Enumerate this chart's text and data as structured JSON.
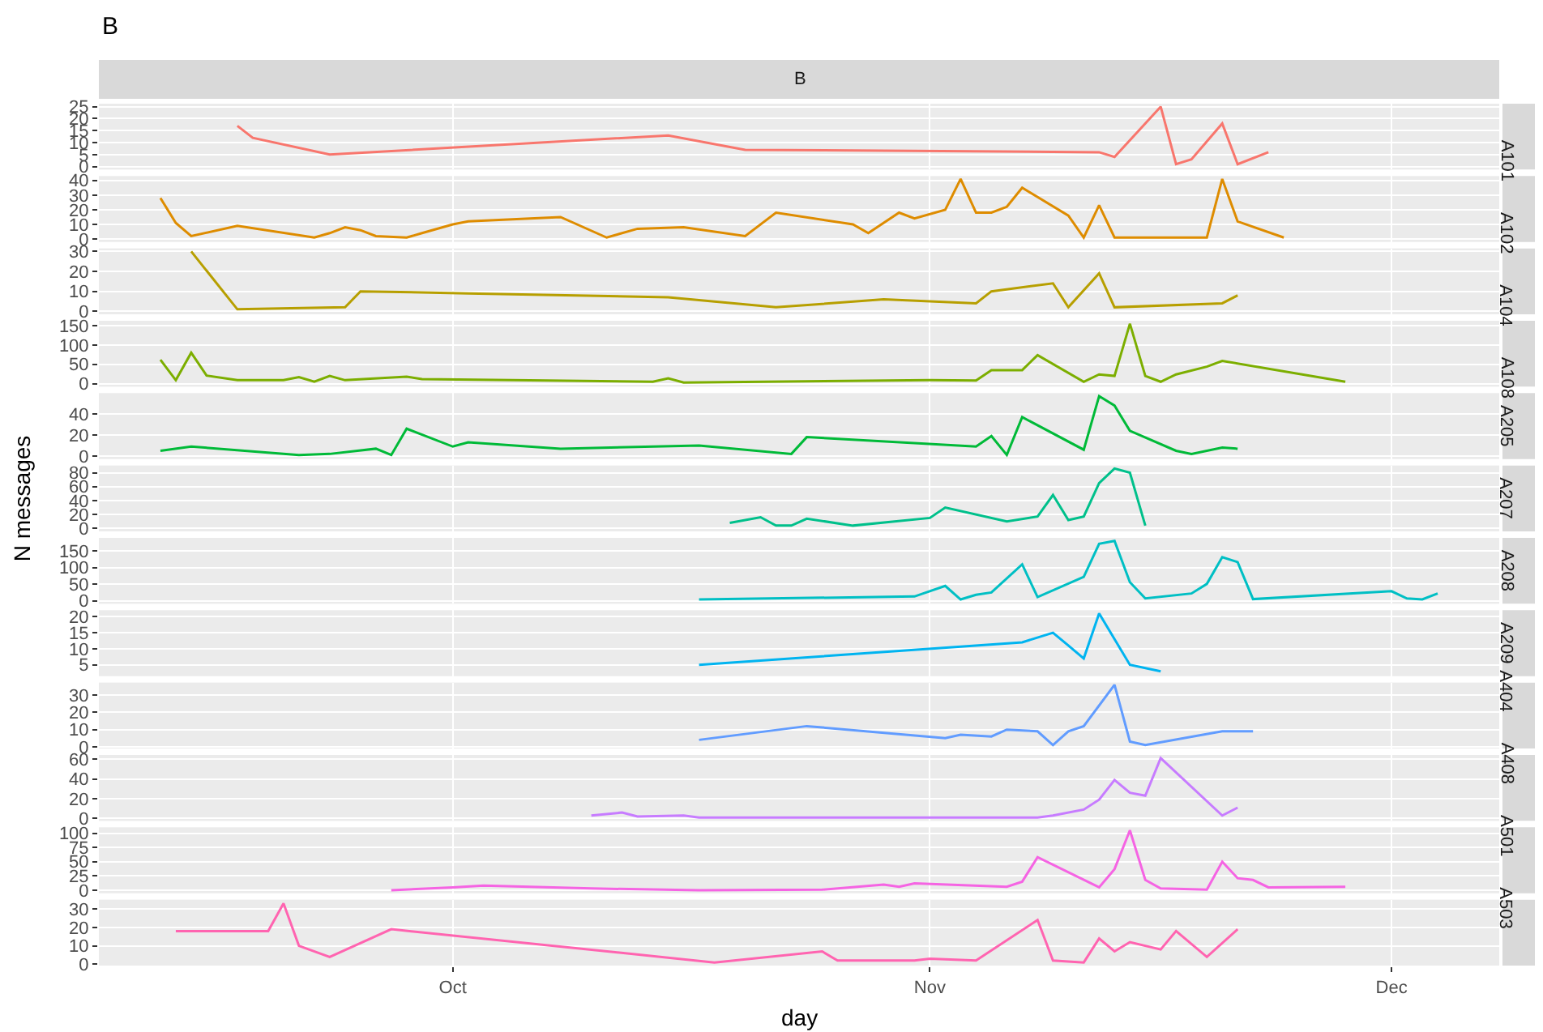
{
  "chart_data": [
    {
      "type": "line",
      "title": "A101",
      "annotations": [
        "B",
        "B"
      ],
      "grid": true,
      "tick_labels": "y",
      "xlim": [
        "--09-08",
        "--12-08"
      ],
      "xticks": [
        {
          "value": "--10-01",
          "label": "Oct"
        },
        {
          "value": "--11-01",
          "label": "Nov"
        },
        {
          "value": "--12-01",
          "label": "Dec"
        }
      ],
      "ylim": [
        -1.25,
        26.25
      ],
      "yticks": [
        0,
        5,
        10,
        15,
        20,
        25
      ],
      "series": [
        {
          "color": "#f8766d",
          "x": [
            "--09-17",
            "--09-18",
            "--09-23",
            "--10-15",
            "--10-20",
            "--11-12",
            "--11-13",
            "--11-16",
            "--11-17",
            "--11-18",
            "--11-20",
            "--11-21",
            "--11-23"
          ],
          "values": [
            17,
            12,
            5,
            13,
            7,
            6,
            4,
            25,
            1,
            3,
            18,
            1,
            6
          ]
        }
      ]
    },
    {
      "type": "line",
      "title": "A102",
      "grid": true,
      "tick_labels": "y",
      "xlim": [
        "--09-08",
        "--12-08"
      ],
      "xticks": [
        {
          "value": "--10-01",
          "label": "Oct"
        },
        {
          "value": "--11-01",
          "label": "Nov"
        },
        {
          "value": "--12-01",
          "label": "Dec"
        }
      ],
      "ylim": [
        -2,
        43
      ],
      "yticks": [
        0,
        10,
        20,
        30,
        40
      ],
      "series": [
        {
          "color": "#de8c00",
          "x": [
            "--09-12",
            "--09-13",
            "--09-14",
            "--09-17",
            "--09-22",
            "--09-23",
            "--09-24",
            "--09-25",
            "--09-26",
            "--09-28",
            "--09-29",
            "--10-01",
            "--10-02",
            "--10-08",
            "--10-11",
            "--10-13",
            "--10-16",
            "--10-20",
            "--10-22",
            "--10-27",
            "--10-28",
            "--10-30",
            "--10-31",
            "--11-02",
            "--11-03",
            "--11-04",
            "--11-05",
            "--11-06",
            "--11-07",
            "--11-10",
            "--11-11",
            "--11-12",
            "--11-13",
            "--11-19",
            "--11-20",
            "--11-21",
            "--11-24"
          ],
          "values": [
            28,
            11,
            2,
            9,
            1,
            4,
            8,
            6,
            2,
            1,
            4,
            10,
            12,
            15,
            1,
            7,
            8,
            2,
            18,
            10,
            4,
            18,
            14,
            20,
            41,
            18,
            18,
            22,
            35,
            16,
            1,
            23,
            1,
            1,
            41,
            12,
            1
          ]
        }
      ]
    },
    {
      "type": "line",
      "title": "A104",
      "grid": true,
      "tick_labels": "y",
      "xlim": [
        "--09-08",
        "--12-08"
      ],
      "xticks": [
        {
          "value": "--10-01",
          "label": "Oct"
        },
        {
          "value": "--11-01",
          "label": "Nov"
        },
        {
          "value": "--12-01",
          "label": "Dec"
        }
      ],
      "ylim": [
        -1.5,
        31.5
      ],
      "yticks": [
        0,
        10,
        20,
        30
      ],
      "series": [
        {
          "color": "#b79f00",
          "x": [
            "--09-14",
            "--09-17",
            "--09-24",
            "--09-25",
            "--10-02",
            "--10-15",
            "--10-22",
            "--10-29",
            "--11-04",
            "--11-05",
            "--11-09",
            "--11-10",
            "--11-12",
            "--11-13",
            "--11-20",
            "--11-21"
          ],
          "values": [
            30,
            1,
            2,
            10,
            9,
            7,
            2,
            6,
            4,
            10,
            14,
            2,
            19,
            2,
            4,
            8
          ]
        }
      ]
    },
    {
      "type": "line",
      "title": "A108",
      "grid": true,
      "tick_labels": "y",
      "xlim": [
        "--09-08",
        "--12-08"
      ],
      "xticks": [
        {
          "value": "--10-01",
          "label": "Oct"
        },
        {
          "value": "--11-01",
          "label": "Nov"
        },
        {
          "value": "--12-01",
          "label": "Dec"
        }
      ],
      "ylim": [
        -7.75,
        162.75
      ],
      "yticks": [
        0,
        50,
        100,
        150
      ],
      "series": [
        {
          "color": "#7cae00",
          "x": [
            "--09-12",
            "--09-13",
            "--09-14",
            "--09-15",
            "--09-17",
            "--09-20",
            "--09-21",
            "--09-22",
            "--09-23",
            "--09-24",
            "--09-28",
            "--09-29",
            "--10-14",
            "--10-15",
            "--10-16",
            "--11-01",
            "--11-04",
            "--11-05",
            "--11-07",
            "--11-08",
            "--11-11",
            "--11-12",
            "--11-13",
            "--11-14",
            "--11-15",
            "--11-16",
            "--11-17",
            "--11-19",
            "--11-20",
            "--11-28"
          ],
          "values": [
            62,
            9,
            80,
            21,
            9,
            9,
            17,
            5,
            20,
            9,
            18,
            12,
            5,
            14,
            3,
            9,
            8,
            35,
            35,
            74,
            5,
            24,
            20,
            155,
            20,
            5,
            24,
            44,
            59,
            5
          ]
        }
      ]
    },
    {
      "type": "line",
      "title": "A205",
      "grid": true,
      "tick_labels": "y",
      "xlim": [
        "--09-08",
        "--12-08"
      ],
      "xticks": [
        {
          "value": "--10-01",
          "label": "Oct"
        },
        {
          "value": "--11-01",
          "label": "Nov"
        },
        {
          "value": "--12-01",
          "label": "Dec"
        }
      ],
      "ylim": [
        -2.85,
        59.85
      ],
      "yticks": [
        0,
        20,
        40
      ],
      "series": [
        {
          "color": "#00ba38",
          "x": [
            "--09-12",
            "--09-14",
            "--09-21",
            "--09-23",
            "--09-26",
            "--09-27",
            "--09-28",
            "--10-01",
            "--10-02",
            "--10-08",
            "--10-17",
            "--10-23",
            "--10-24",
            "--11-04",
            "--11-05",
            "--11-06",
            "--11-07",
            "--11-11",
            "--11-12",
            "--11-13",
            "--11-14",
            "--11-17",
            "--11-18",
            "--11-20",
            "--11-21"
          ],
          "values": [
            5,
            9,
            1,
            2,
            7,
            1,
            26,
            9,
            13,
            7,
            10,
            2,
            18,
            9,
            19,
            1,
            37,
            6,
            57,
            48,
            24,
            5,
            2,
            8,
            7
          ]
        }
      ]
    },
    {
      "type": "line",
      "title": "A207",
      "ylabel": "N messages",
      "grid": true,
      "tick_labels": "y",
      "xlim": [
        "--09-08",
        "--12-08"
      ],
      "xticks": [
        {
          "value": "--10-01",
          "label": "Oct"
        },
        {
          "value": "--11-01",
          "label": "Nov"
        },
        {
          "value": "--12-01",
          "label": "Dec"
        }
      ],
      "ylim": [
        -4.3,
        90.3
      ],
      "yticks": [
        0,
        20,
        40,
        60,
        80
      ],
      "series": [
        {
          "color": "#00c08b",
          "x": [
            "--10-19",
            "--10-21",
            "--10-22",
            "--10-23",
            "--10-24",
            "--10-27",
            "--11-01",
            "--11-02",
            "--11-06",
            "--11-08",
            "--11-09",
            "--11-10",
            "--11-11",
            "--11-12",
            "--11-13",
            "--11-14",
            "--11-15"
          ],
          "values": [
            8,
            16,
            4,
            4,
            14,
            4,
            15,
            30,
            10,
            17,
            48,
            12,
            17,
            65,
            86,
            80,
            4
          ]
        }
      ]
    },
    {
      "type": "line",
      "title": "A208",
      "grid": true,
      "tick_labels": "y",
      "xlim": [
        "--09-08",
        "--12-08"
      ],
      "xticks": [
        {
          "value": "--10-01",
          "label": "Oct"
        },
        {
          "value": "--11-01",
          "label": "Nov"
        },
        {
          "value": "--12-01",
          "label": "Dec"
        }
      ],
      "ylim": [
        -9,
        190
      ],
      "yticks": [
        0,
        50,
        100,
        150
      ],
      "series": [
        {
          "color": "#00bfc4",
          "x": [
            "--10-17",
            "--10-31",
            "--11-02",
            "--11-03",
            "--11-04",
            "--11-05",
            "--11-07",
            "--11-08",
            "--11-11",
            "--11-12",
            "--11-13",
            "--11-14",
            "--11-15",
            "--11-18",
            "--11-19",
            "--11-20",
            "--11-21",
            "--11-22",
            "--12-01",
            "--12-02",
            "--12-03",
            "--12-04"
          ],
          "values": [
            4,
            13,
            45,
            4,
            18,
            25,
            110,
            11,
            72,
            172,
            181,
            56,
            7,
            22,
            51,
            132,
            117,
            5,
            29,
            7,
            4,
            22
          ]
        }
      ]
    },
    {
      "type": "line",
      "title": "A209",
      "grid": true,
      "tick_labels": "y",
      "xlim": [
        "--09-08",
        "--12-08"
      ],
      "xticks": [
        {
          "value": "--10-01",
          "label": "Oct"
        },
        {
          "value": "--11-01",
          "label": "Nov"
        },
        {
          "value": "--12-01",
          "label": "Dec"
        }
      ],
      "ylim": [
        1.5,
        22
      ],
      "yticks": [
        5,
        10,
        15,
        20
      ],
      "series": [
        {
          "color": "#00b4f0",
          "x": [
            "--10-17",
            "--11-07",
            "--11-09",
            "--11-10",
            "--11-11",
            "--11-12",
            "--11-13",
            "--11-14",
            "--11-16"
          ],
          "values": [
            5,
            12,
            15,
            11,
            7,
            21,
            13,
            5,
            3
          ]
        }
      ]
    },
    {
      "type": "line",
      "title": "A404",
      "grid": true,
      "tick_labels": "y",
      "xlim": [
        "--09-08",
        "--12-08"
      ],
      "xticks": [
        {
          "value": "--10-01",
          "label": "Oct"
        },
        {
          "value": "--11-01",
          "label": "Nov"
        },
        {
          "value": "--12-01",
          "label": "Dec"
        }
      ],
      "ylim": [
        -1,
        37.3
      ],
      "yticks": [
        0,
        10,
        20,
        30
      ],
      "series": [
        {
          "color": "#619cff",
          "x": [
            "--10-17",
            "--10-24",
            "--11-02",
            "--11-03",
            "--11-05",
            "--11-06",
            "--11-08",
            "--11-09",
            "--11-10",
            "--11-11",
            "--11-13",
            "--11-14",
            "--11-15",
            "--11-20",
            "--11-22"
          ],
          "values": [
            4,
            12,
            5,
            7,
            6,
            10,
            9,
            1,
            9,
            12,
            36,
            3,
            1,
            9,
            9
          ]
        }
      ]
    },
    {
      "type": "line",
      "title": "A408",
      "grid": true,
      "tick_labels": "y",
      "xlim": [
        "--09-08",
        "--12-08"
      ],
      "xticks": [
        {
          "value": "--10-01",
          "label": "Oct"
        },
        {
          "value": "--11-01",
          "label": "Nov"
        },
        {
          "value": "--12-01",
          "label": "Dec"
        }
      ],
      "ylim": [
        -2.4,
        64.2
      ],
      "yticks": [
        0,
        20,
        40,
        60
      ],
      "series": [
        {
          "color": "#c77cff",
          "x": [
            "--10-10",
            "--10-12",
            "--10-13",
            "--10-16",
            "--10-17",
            "--11-01",
            "--11-08",
            "--11-09",
            "--11-11",
            "--11-12",
            "--11-13",
            "--11-14",
            "--11-15",
            "--11-16",
            "--11-20",
            "--11-21"
          ],
          "values": [
            3,
            6,
            2,
            3,
            1,
            1,
            1,
            3,
            9,
            19,
            39,
            26,
            23,
            61,
            3,
            11
          ]
        }
      ]
    },
    {
      "type": "line",
      "title": "A501",
      "grid": true,
      "tick_labels": "y",
      "xlim": [
        "--09-08",
        "--12-08"
      ],
      "xticks": [
        {
          "value": "--10-01",
          "label": "Oct"
        },
        {
          "value": "--11-01",
          "label": "Nov"
        },
        {
          "value": "--12-01",
          "label": "Dec"
        }
      ],
      "ylim": [
        -5.25,
        110.25
      ],
      "yticks": [
        0,
        25,
        50,
        75,
        100
      ],
      "series": [
        {
          "color": "#f564e3",
          "x": [
            "--09-27",
            "--10-01",
            "--10-03",
            "--10-10",
            "--10-17",
            "--10-25",
            "--10-29",
            "--10-30",
            "--10-31",
            "--11-06",
            "--11-07",
            "--11-08",
            "--11-12",
            "--11-13",
            "--11-14",
            "--11-15",
            "--11-16",
            "--11-19",
            "--11-20",
            "--11-21",
            "--11-22",
            "--11-23",
            "--11-28"
          ],
          "values": [
            0,
            5,
            8,
            3,
            0,
            1,
            10,
            6,
            12,
            6,
            15,
            58,
            5,
            37,
            105,
            18,
            3,
            1,
            50,
            21,
            18,
            5,
            6
          ]
        }
      ]
    },
    {
      "type": "line",
      "title": "A503",
      "xlabel": "day",
      "grid": true,
      "xlim": [
        "--09-08",
        "--12-08"
      ],
      "xticks": [
        {
          "value": "--10-01",
          "label": "Oct"
        },
        {
          "value": "--11-01",
          "label": "Nov"
        },
        {
          "value": "--12-01",
          "label": "Dec"
        }
      ],
      "ylim": [
        -0.7,
        35
      ],
      "yticks": [
        0,
        10,
        20,
        30
      ],
      "series": [
        {
          "color": "#ff64b0",
          "x": [
            "--09-13",
            "--09-19",
            "--09-20",
            "--09-21",
            "--09-23",
            "--09-27",
            "--10-18",
            "--10-25",
            "--10-26",
            "--10-31",
            "--11-01",
            "--11-04",
            "--11-08",
            "--11-09",
            "--11-11",
            "--11-12",
            "--11-13",
            "--11-14",
            "--11-16",
            "--11-17",
            "--11-19",
            "--11-21"
          ],
          "values": [
            18,
            18,
            33,
            10,
            4,
            19,
            1,
            7,
            2,
            2,
            3,
            2,
            24,
            2,
            1,
            14,
            7,
            12,
            8,
            18,
            4,
            19
          ]
        }
      ]
    }
  ]
}
